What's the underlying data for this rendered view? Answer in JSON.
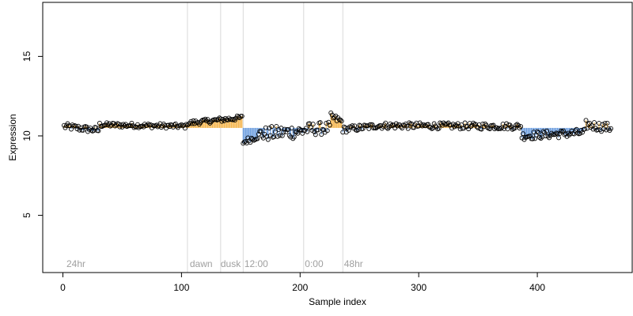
{
  "chart_data": {
    "type": "scatter",
    "xlabel": "Sample index",
    "ylabel": "Expression",
    "xlim": [
      -17,
      480
    ],
    "ylim": [
      1.4,
      18.4
    ],
    "x_ticks": [
      0,
      100,
      200,
      300,
      400
    ],
    "y_ticks": [
      5,
      10,
      15
    ],
    "baseline": 10.5,
    "grid": false,
    "colors": {
      "above": "#f5b347",
      "below": "#6a9cde",
      "marker_edge": "#000000",
      "vline": "#d9d9d9",
      "annotation": "#a0a0a0"
    },
    "vlines": [
      105,
      133,
      152,
      203,
      236
    ],
    "annotations": [
      {
        "x": 3,
        "text": "24hr"
      },
      {
        "x": 107,
        "text": "dawn"
      },
      {
        "x": 133,
        "text": "dusk"
      },
      {
        "x": 153,
        "text": "12:00"
      },
      {
        "x": 204,
        "text": "0:00"
      },
      {
        "x": 237,
        "text": "48hr"
      }
    ],
    "annotation_y": 1.95,
    "segments": [
      {
        "x_start": 1,
        "x_end": 30,
        "start": 10.6,
        "end": 10.35,
        "noise": 0.2
      },
      {
        "x_start": 31,
        "x_end": 104,
        "start": 10.7,
        "end": 10.6,
        "noise": 0.15
      },
      {
        "x_start": 105,
        "x_end": 151,
        "start": 10.8,
        "end": 11.15,
        "noise": 0.15
      },
      {
        "x_start": 152,
        "x_end": 165,
        "start": 9.6,
        "end": 10.0,
        "noise": 0.2
      },
      {
        "x_start": 166,
        "x_end": 202,
        "start": 10.1,
        "end": 10.3,
        "noise": 0.45
      },
      {
        "x_start": 203,
        "x_end": 225,
        "start": 10.4,
        "end": 10.5,
        "noise": 0.4
      },
      {
        "x_start": 226,
        "x_end": 235,
        "start": 11.2,
        "end": 10.9,
        "noise": 0.25
      },
      {
        "x_start": 236,
        "x_end": 262,
        "start": 10.4,
        "end": 10.6,
        "noise": 0.2
      },
      {
        "x_start": 263,
        "x_end": 386,
        "start": 10.65,
        "end": 10.6,
        "noise": 0.2
      },
      {
        "x_start": 387,
        "x_end": 440,
        "start": 10.0,
        "end": 10.2,
        "noise": 0.25
      },
      {
        "x_start": 441,
        "x_end": 462,
        "start": 10.7,
        "end": 10.5,
        "noise": 0.3
      }
    ]
  }
}
